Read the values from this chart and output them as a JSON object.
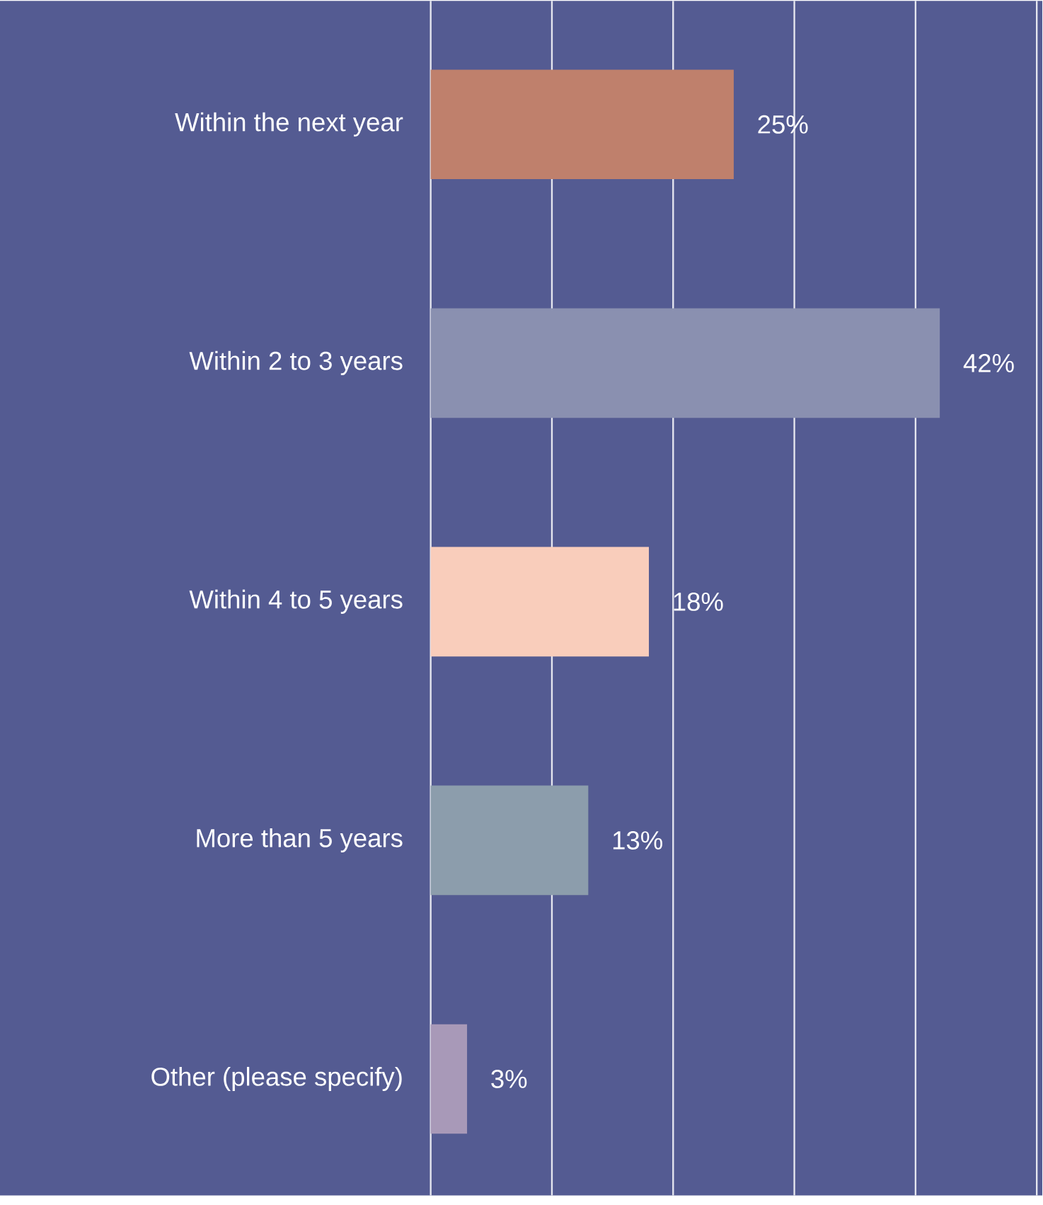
{
  "chart_data": {
    "type": "bar",
    "orientation": "horizontal",
    "categories": [
      "Within the next year",
      "Within 2 to 3 years",
      "Within 4 to 5 years",
      "More than 5 years",
      "Other (please specify)"
    ],
    "values": [
      25,
      42,
      18,
      13,
      3
    ],
    "value_labels": [
      "25%",
      "42%",
      "18%",
      "13%",
      "3%"
    ],
    "colors": [
      "#bf806c",
      "#8a90b0",
      "#f9cdbb",
      "#8c9dac",
      "#a899b8"
    ],
    "xlim": [
      0,
      50
    ],
    "xticks": [
      {
        "value": 0,
        "label": null
      },
      {
        "value": 10,
        "label": null
      },
      {
        "value": 20,
        "label": null
      },
      {
        "value": 30,
        "label": null
      },
      {
        "value": 40,
        "label": null
      },
      {
        "value": 50,
        "label": null
      }
    ],
    "grid": "x",
    "tick_labels": "y"
  }
}
